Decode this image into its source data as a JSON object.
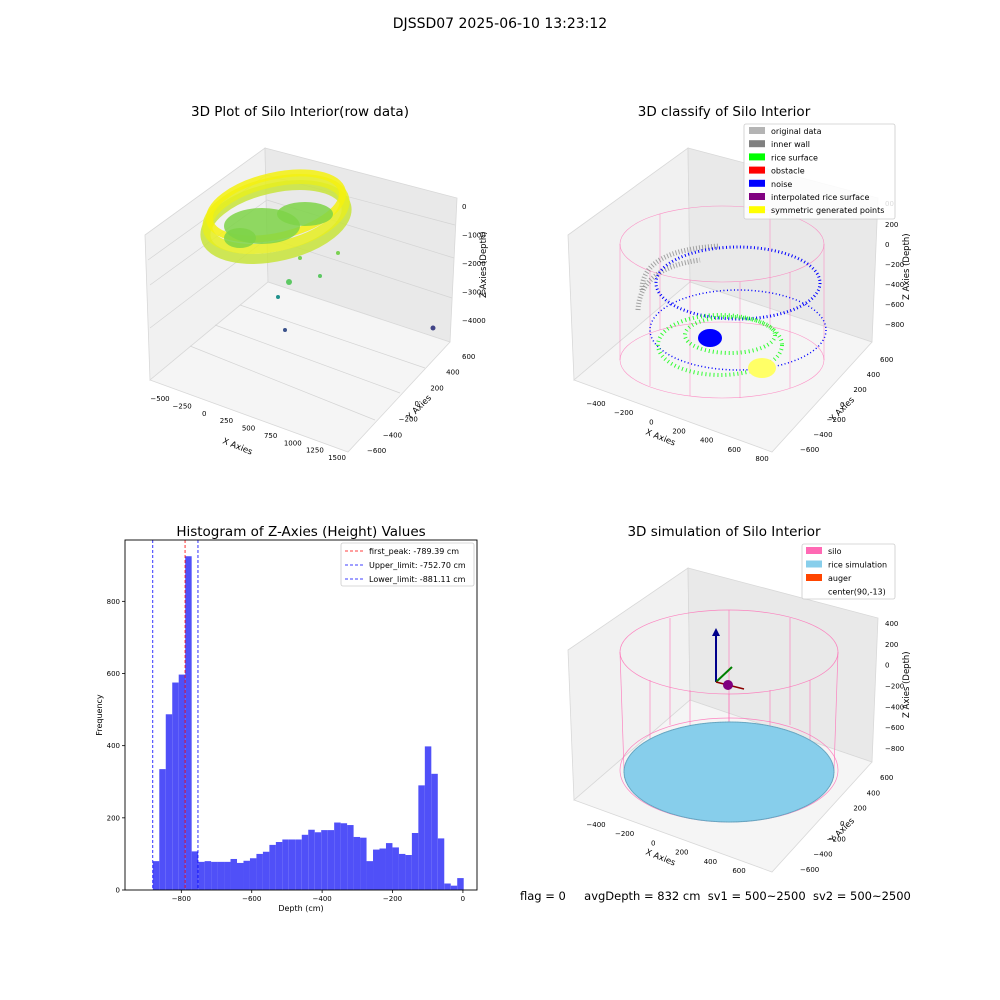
{
  "figure": {
    "suptitle": "DJSSD07 2025-06-10 13:23:12",
    "footer": {
      "flag": "flag = 0",
      "avg_depth": "avgDepth = 832 cm",
      "sv1": "sv1 = 500~2500",
      "sv2": "sv2 = 500~2500"
    }
  },
  "colors": {
    "hist_bar": "#5050f8",
    "first_peak_line": "#ff0000",
    "limit_line": "#0000ff",
    "silo": "#ff69b4",
    "rice_simulation": "#87ceeb",
    "auger": "#ff4500",
    "original_data": "#b4b4b4",
    "inner_wall": "#808080",
    "rice_surface": "#00ff00",
    "obstacle": "#ff0000",
    "noise": "#0000ff",
    "interpolated_rice_surface": "#800080",
    "symmetric_generated_points": "#ffff00"
  },
  "chart_data": [
    {
      "type": "scatter",
      "subtype": "scatter3d",
      "title": "3D Plot of Silo Interior(row data)",
      "xlabel": "X Axies",
      "ylabel": "Y Axies",
      "zlabel": "Z Axies (Depth)",
      "x_ticks": [
        "−500",
        "−250",
        "0",
        "250",
        "500",
        "750",
        "1000",
        "1250",
        "1500"
      ],
      "y_ticks": [
        "−600",
        "−400",
        "−200",
        "0",
        "200",
        "400",
        "600"
      ],
      "z_ticks": [
        "0",
        "−1000",
        "−2000",
        "−3000",
        "−4000"
      ],
      "grid": true
    },
    {
      "type": "scatter",
      "subtype": "scatter3d",
      "title": "3D classify of Silo Interior",
      "xlabel": "X Axies",
      "ylabel": "Y Axies",
      "zlabel": "Z Axies (Depth)",
      "x_ticks": [
        "−400",
        "−200",
        "0",
        "200",
        "400",
        "600",
        "800"
      ],
      "y_ticks": [
        "−600",
        "−400",
        "−200",
        "0",
        "200",
        "400",
        "600"
      ],
      "z_ticks": [
        "200",
        "0",
        "−200",
        "−400",
        "−600",
        "−800"
      ],
      "z_top_tick": "00",
      "legend": {
        "position": "top-right",
        "entries": [
          {
            "label": "original data",
            "color": "#b4b4b4"
          },
          {
            "label": "inner wall",
            "color": "#808080"
          },
          {
            "label": "rice surface",
            "color": "#00ff00"
          },
          {
            "label": "obstacle",
            "color": "#ff0000"
          },
          {
            "label": "noise",
            "color": "#0000ff"
          },
          {
            "label": "interpolated rice surface",
            "color": "#800080"
          },
          {
            "label": "symmetric generated points",
            "color": "#ffff00"
          }
        ]
      },
      "grid": true
    },
    {
      "type": "bar",
      "subtype": "histogram",
      "title": "Histogram of Z-Axies (Height) Values",
      "xlabel": "Depth (cm)",
      "ylabel": "Frequency",
      "xlim": [
        -960,
        40
      ],
      "ylim": [
        0,
        970
      ],
      "x_ticks": [
        -800,
        -600,
        -400,
        -200,
        0
      ],
      "x_tick_labels": [
        "−800",
        "−600",
        "−400",
        "−200",
        "0"
      ],
      "y_ticks": [
        0,
        200,
        400,
        600,
        800
      ],
      "bin_start": -881,
      "bin_width": 18.4,
      "values": [
        80,
        335,
        487,
        575,
        597,
        925,
        107,
        78,
        80,
        78,
        78,
        78,
        86,
        75,
        81,
        88,
        100,
        106,
        125,
        133,
        140,
        140,
        140,
        153,
        167,
        160,
        166,
        166,
        187,
        185,
        180,
        147,
        145,
        80,
        112,
        115,
        130,
        118,
        100,
        97,
        158,
        290,
        398,
        322,
        143,
        18,
        12,
        33
      ],
      "vlines": [
        {
          "label": "first_peak: -789.39 cm",
          "x": -789.39,
          "color": "#ff0000"
        },
        {
          "label": "Upper_limit: -752.70 cm",
          "x": -752.7,
          "color": "#0000ff"
        },
        {
          "label": "Lower_limit: -881.11 cm",
          "x": -881.11,
          "color": "#0000ff"
        }
      ],
      "legend": {
        "position": "top-right"
      }
    },
    {
      "type": "scatter",
      "subtype": "scatter3d",
      "title": "3D simulation of Silo Interior",
      "xlabel": "X Axies",
      "ylabel": "Y Axies",
      "zlabel": "Z Axies (Depth)",
      "x_ticks": [
        "−400",
        "−200",
        "0",
        "200",
        "400",
        "600"
      ],
      "y_ticks": [
        "−600",
        "−400",
        "−200",
        "0",
        "200",
        "400",
        "600"
      ],
      "z_ticks": [
        "400",
        "200",
        "0",
        "−200",
        "−400",
        "−600",
        "−800"
      ],
      "legend": {
        "position": "top-right",
        "entries": [
          {
            "label": "silo",
            "color": "#ff69b4"
          },
          {
            "label": "rice simulation",
            "color": "#87ceeb"
          },
          {
            "label": "auger",
            "color": "#ff4500"
          },
          {
            "label": "center(90,-13)",
            "color": "#ffffff"
          }
        ]
      },
      "grid": true
    }
  ]
}
